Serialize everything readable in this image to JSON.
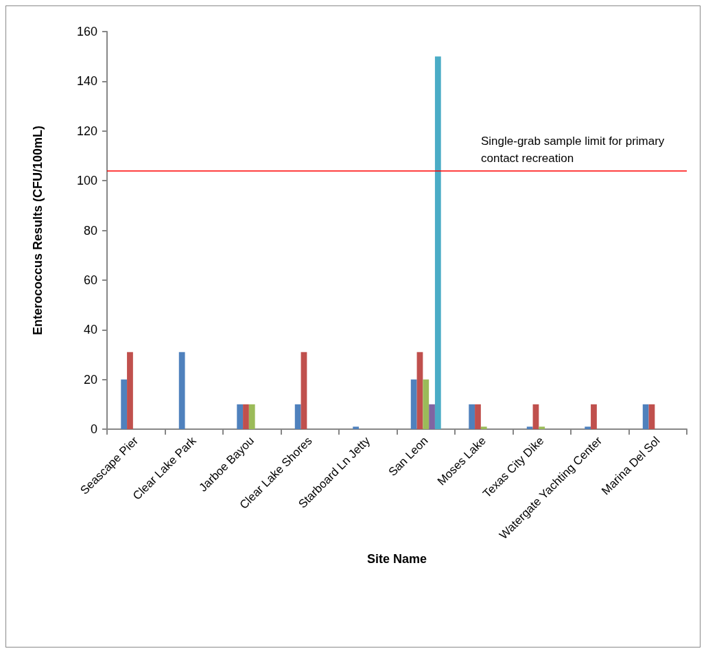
{
  "chart_data": {
    "type": "bar",
    "xlabel": "Site Name",
    "ylabel": "Enterococcus Results (CFU/100mL)",
    "categories": [
      "Seascape Pier",
      "Clear Lake Park",
      "Jarboe Bayou",
      "Clear Lake Shores",
      "Starboard Ln Jetty",
      "San Leon",
      "Moses Lake",
      "Texas City Dike",
      "Watergate Yachting Center",
      "Marina Del Sol"
    ],
    "series": [
      {
        "color": "#4f81bd",
        "values": [
          20,
          31,
          10,
          10,
          1,
          20,
          10,
          1,
          1,
          10
        ]
      },
      {
        "color": "#c0504d",
        "values": [
          31,
          null,
          10,
          31,
          null,
          31,
          10,
          10,
          10,
          10
        ]
      },
      {
        "color": "#9bbb59",
        "values": [
          null,
          null,
          10,
          null,
          null,
          20,
          1,
          1,
          null,
          null
        ]
      },
      {
        "color": "#8064a2",
        "values": [
          null,
          null,
          null,
          null,
          null,
          10,
          null,
          null,
          null,
          null
        ]
      },
      {
        "color": "#4bacc6",
        "values": [
          null,
          null,
          null,
          null,
          null,
          150,
          null,
          null,
          null,
          null
        ]
      }
    ],
    "ylim": [
      0,
      160
    ],
    "yticks": [
      0,
      20,
      40,
      60,
      80,
      100,
      120,
      140,
      160
    ],
    "grid": false,
    "ref_lines": [
      {
        "axis": "y",
        "value": 104,
        "label": "Single-grab sample limit for primary contact recreation",
        "color": "#ff0000",
        "line_style": "solid"
      }
    ]
  }
}
